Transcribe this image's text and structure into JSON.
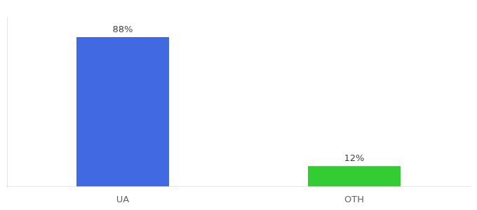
{
  "chart_data": {
    "type": "bar",
    "categories": [
      "UA",
      "OTH"
    ],
    "values": [
      88,
      12
    ],
    "value_labels": [
      "88%",
      "12%"
    ],
    "data_labels": true,
    "colors": [
      "#4169e1",
      "#33cc33"
    ],
    "ylim": [
      0,
      100
    ],
    "tick_labels": "x",
    "grid": false
  }
}
